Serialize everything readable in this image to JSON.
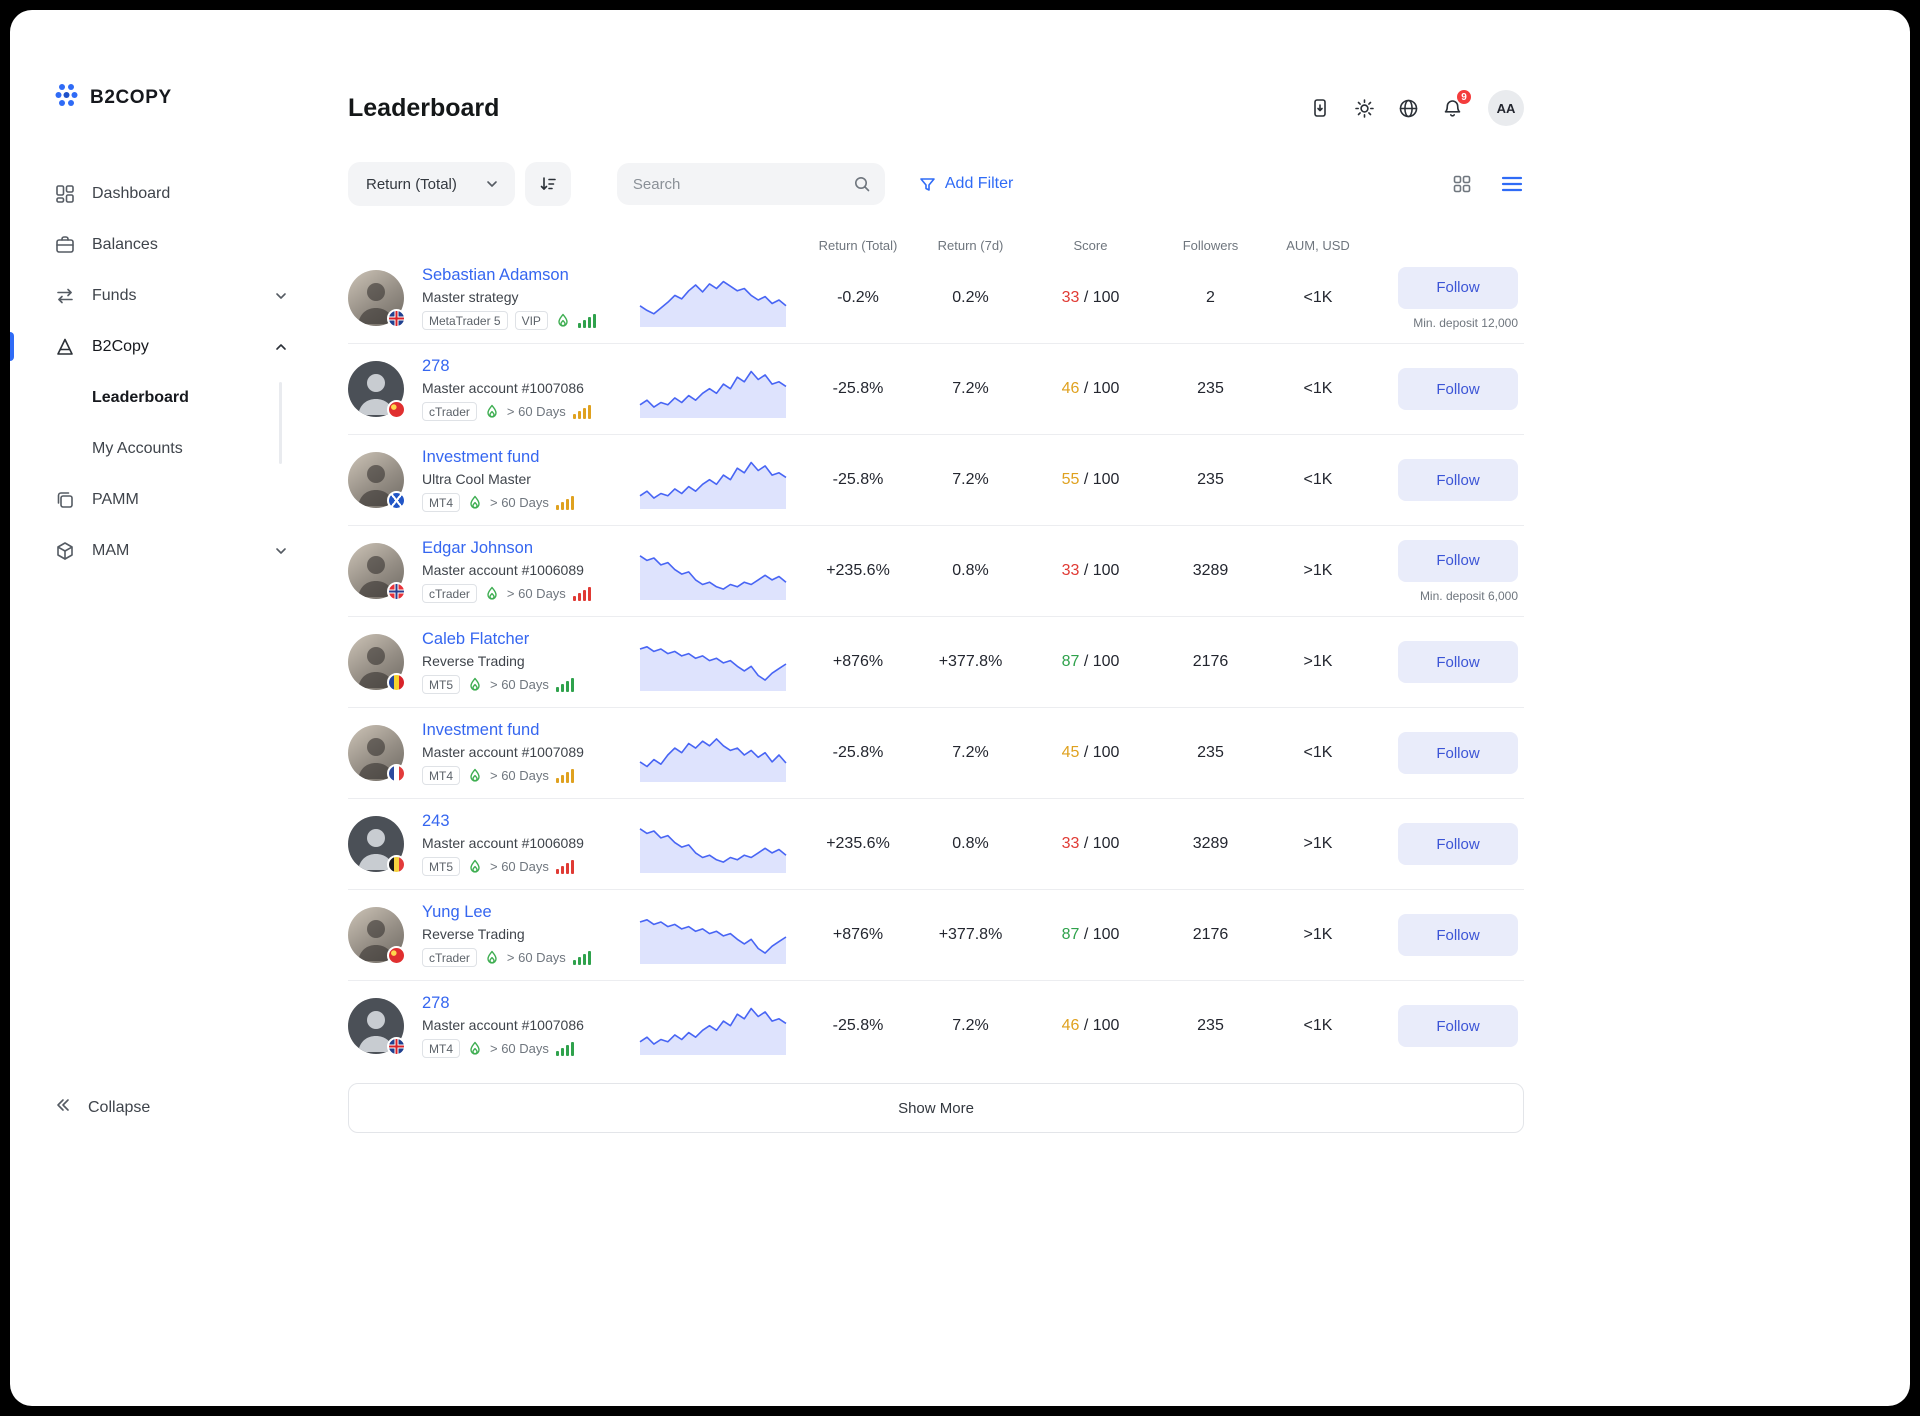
{
  "brand": {
    "name": "B2COPY"
  },
  "page": {
    "title": "Leaderboard"
  },
  "colors": {
    "accent": "#2f6bf6",
    "score_red": "#e03a34",
    "score_yellow": "#dfa11f",
    "score_green": "#2fa24c",
    "spark": "#4865f4"
  },
  "sidebar": {
    "items": [
      {
        "label": "Dashboard"
      },
      {
        "label": "Balances"
      },
      {
        "label": "Funds"
      },
      {
        "label": "B2Copy"
      }
    ],
    "submenu": [
      {
        "label": "Leaderboard"
      },
      {
        "label": "My Accounts"
      }
    ],
    "items_after": [
      {
        "label": "PAMM"
      },
      {
        "label": "MAM"
      }
    ],
    "collapse_label": "Collapse"
  },
  "header": {
    "notification_count": "9",
    "avatar_initials": "AA"
  },
  "toolbar": {
    "sort_by": "Return (Total)",
    "search_placeholder": "Search",
    "add_filter": "Add Filter"
  },
  "table": {
    "columns": [
      "Return (Total)",
      "Return (7d)",
      "Score",
      "Followers",
      "AUM, USD"
    ],
    "score_denominator": "/ 100",
    "follow_label": "Follow",
    "rows": [
      {
        "name": "Sebastian Adamson",
        "subtitle": "Master strategy",
        "badges": [
          "MetaTrader 5",
          "VIP"
        ],
        "days": "",
        "bars": "green",
        "flag": "gb",
        "avatar": "photo",
        "spark": "hump",
        "return_total": "-0.2%",
        "return_7d": "0.2%",
        "score": "33",
        "score_color": "red",
        "followers": "2",
        "aum": "<1K",
        "min_deposit": "Min. deposit 12,000"
      },
      {
        "name": "278",
        "subtitle": "Master account #1007086",
        "badges": [
          "cTrader"
        ],
        "days": "> 60 Days",
        "bars": "yellow",
        "flag": "cn",
        "avatar": "placeholder",
        "spark": "rise",
        "return_total": "-25.8%",
        "return_7d": "7.2%",
        "score": "46",
        "score_color": "yellow",
        "followers": "235",
        "aum": "<1K",
        "min_deposit": ""
      },
      {
        "name": "Investment fund",
        "subtitle": "Ultra Cool Master",
        "badges": [
          "MT4"
        ],
        "days": "> 60 Days",
        "bars": "yellow",
        "flag": "sct",
        "avatar": "photo",
        "spark": "rise",
        "return_total": "-25.8%",
        "return_7d": "7.2%",
        "score": "55",
        "score_color": "yellow",
        "followers": "235",
        "aum": "<1K",
        "min_deposit": ""
      },
      {
        "name": "Edgar Johnson",
        "subtitle": "Master account #1006089",
        "badges": [
          "cTrader"
        ],
        "days": "> 60 Days",
        "bars": "red",
        "flag": "no",
        "avatar": "photo",
        "spark": "fall",
        "return_total": "+235.6%",
        "return_7d": "0.8%",
        "score": "33",
        "score_color": "red",
        "followers": "3289",
        "aum": ">1K",
        "min_deposit": "Min. deposit 6,000"
      },
      {
        "name": "Caleb Flatcher",
        "subtitle": "Reverse Trading",
        "badges": [
          "MT5"
        ],
        "days": "> 60 Days",
        "bars": "green",
        "flag": "ro",
        "avatar": "photo",
        "spark": "slope",
        "return_total": "+876%",
        "return_7d": "+377.8%",
        "score": "87",
        "score_color": "green",
        "followers": "2176",
        "aum": ">1K",
        "min_deposit": ""
      },
      {
        "name": "Investment fund",
        "subtitle": "Master account #1007089",
        "badges": [
          "MT4"
        ],
        "days": "> 60 Days",
        "bars": "yellow",
        "flag": "fr",
        "avatar": "photo",
        "spark": "hump2",
        "return_total": "-25.8%",
        "return_7d": "7.2%",
        "score": "45",
        "score_color": "yellow",
        "followers": "235",
        "aum": "<1K",
        "min_deposit": ""
      },
      {
        "name": "243",
        "subtitle": "Master account #1006089",
        "badges": [
          "MT5"
        ],
        "days": "> 60 Days",
        "bars": "red",
        "flag": "be",
        "avatar": "placeholder",
        "spark": "fall",
        "return_total": "+235.6%",
        "return_7d": "0.8%",
        "score": "33",
        "score_color": "red",
        "followers": "3289",
        "aum": ">1K",
        "min_deposit": ""
      },
      {
        "name": "Yung Lee",
        "subtitle": "Reverse Trading",
        "badges": [
          "cTrader"
        ],
        "days": "> 60 Days",
        "bars": "green",
        "flag": "cn",
        "avatar": "photo",
        "spark": "slope",
        "return_total": "+876%",
        "return_7d": "+377.8%",
        "score": "87",
        "score_color": "green",
        "followers": "2176",
        "aum": ">1K",
        "min_deposit": ""
      },
      {
        "name": "278",
        "subtitle": "Master account #1007086",
        "badges": [
          "MT4"
        ],
        "days": "> 60 Days",
        "bars": "green",
        "flag": "gb",
        "avatar": "placeholder",
        "spark": "rise",
        "return_total": "-25.8%",
        "return_7d": "7.2%",
        "score": "46",
        "score_color": "yellow",
        "followers": "235",
        "aum": "<1K",
        "min_deposit": ""
      }
    ]
  },
  "show_more": "Show More",
  "sparklines": {
    "hump": [
      15,
      11,
      8,
      13,
      18,
      24,
      21,
      28,
      33,
      27,
      34,
      30,
      36,
      32,
      28,
      30,
      24,
      20,
      23,
      17,
      20,
      15
    ],
    "rise": [
      8,
      12,
      6,
      10,
      8,
      14,
      10,
      16,
      12,
      18,
      22,
      18,
      26,
      22,
      32,
      28,
      37,
      30,
      34,
      26,
      28,
      24
    ],
    "fall": [
      35,
      31,
      33,
      27,
      29,
      23,
      19,
      21,
      14,
      10,
      12,
      8,
      6,
      10,
      8,
      12,
      10,
      14,
      18,
      14,
      17,
      12
    ],
    "slope": [
      33,
      35,
      31,
      33,
      29,
      31,
      27,
      29,
      25,
      27,
      23,
      25,
      21,
      23,
      18,
      14,
      18,
      10,
      6,
      12,
      16,
      20
    ],
    "hump2": [
      14,
      10,
      16,
      12,
      20,
      26,
      22,
      30,
      26,
      32,
      28,
      34,
      28,
      24,
      26,
      20,
      24,
      18,
      22,
      14,
      20,
      13
    ]
  }
}
